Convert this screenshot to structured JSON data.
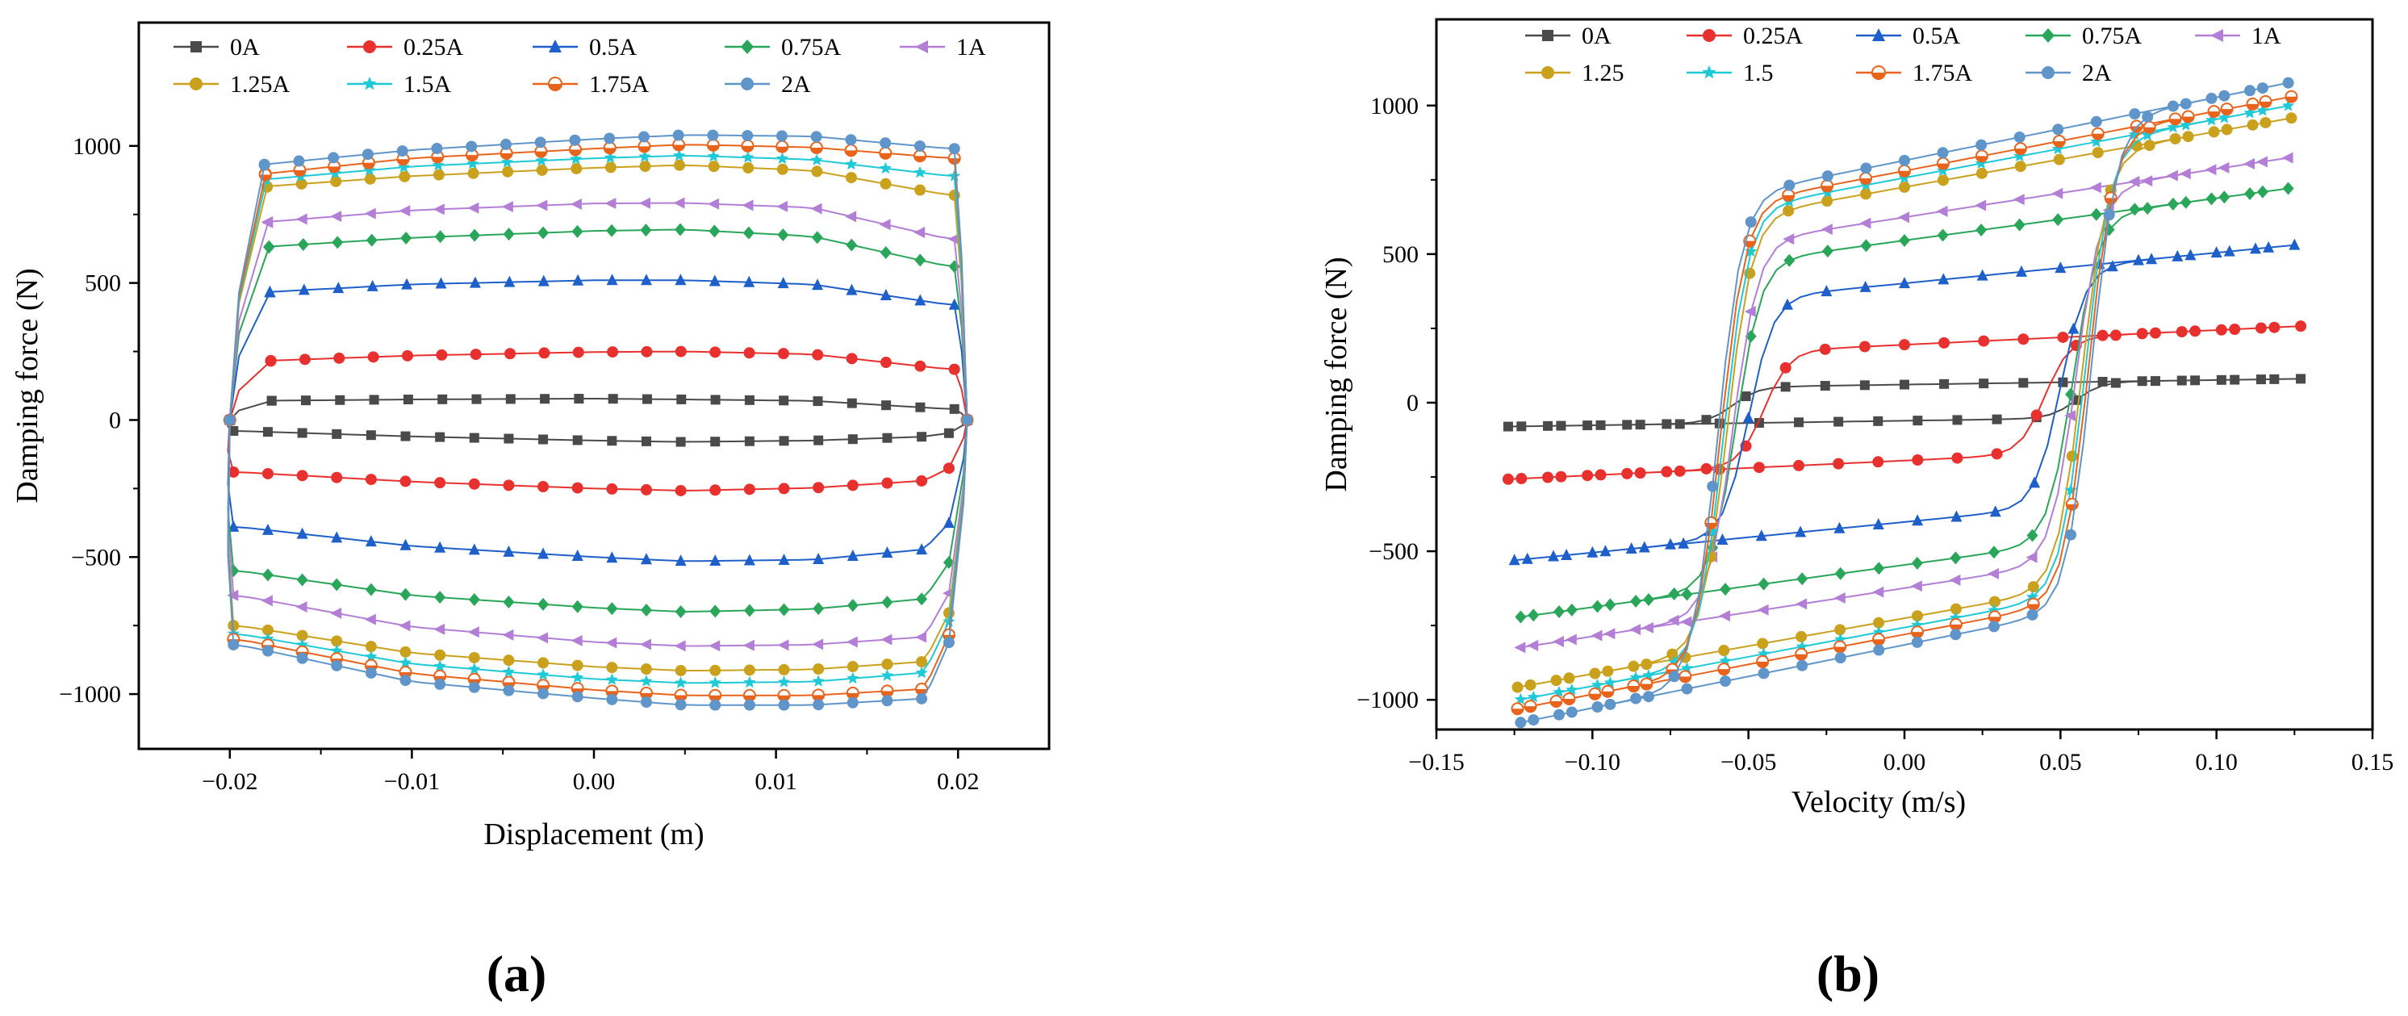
{
  "colors": {
    "0A": "#4a4a4a",
    "0.25A": "#e8312f",
    "0.5A": "#1f5fc9",
    "0.75A": "#2aa65b",
    "1A": "#b37fd6",
    "1.25A": "#c9a11c",
    "1.5A": "#1fc9d6",
    "1.75A": "#e8641c",
    "2A": "#5f95c9"
  },
  "chart_data": [
    {
      "type": "line",
      "panel_label": "(a)",
      "title": "",
      "xlabel": "Displacement (m)",
      "ylabel": "Damping force (N)",
      "xlim": [
        -0.025,
        0.025
      ],
      "ylim": [
        -1200,
        1450
      ],
      "xticks": [
        -0.02,
        -0.01,
        0.0,
        0.01,
        0.02
      ],
      "xtick_labels": [
        "−0.02",
        "−0.01",
        "0.00",
        "0.01",
        "0.02"
      ],
      "yticks": [
        -1000,
        -500,
        0,
        500,
        1000
      ],
      "ytick_labels": [
        "−1000",
        "−500",
        "0",
        "500",
        "1000"
      ],
      "legend_labels": [
        "0A",
        "0.25A",
        "0.5A",
        "0.75A",
        "1A",
        "1.25A",
        "1.5A",
        "1.75A",
        "2A"
      ],
      "legend_position": "top",
      "series": [
        {
          "name": "0A",
          "marker": "square",
          "upper": [
            70,
            75,
            78,
            75,
            70,
            40
          ],
          "lower": [
            -40,
            -60,
            -75,
            -80,
            -75,
            -60
          ]
        },
        {
          "name": "0.25A",
          "marker": "circle",
          "upper": [
            215,
            235,
            248,
            250,
            240,
            185
          ],
          "lower": [
            -190,
            -225,
            -250,
            -258,
            -248,
            -220
          ]
        },
        {
          "name": "0.5A",
          "marker": "triangle-up",
          "upper": [
            465,
            495,
            510,
            510,
            495,
            420
          ],
          "lower": [
            -390,
            -460,
            -500,
            -515,
            -510,
            -470
          ]
        },
        {
          "name": "0.75A",
          "marker": "diamond",
          "upper": [
            630,
            665,
            690,
            695,
            670,
            560
          ],
          "lower": [
            -550,
            -640,
            -685,
            -700,
            -690,
            -650
          ]
        },
        {
          "name": "1A",
          "marker": "triangle-left",
          "upper": [
            720,
            765,
            790,
            792,
            775,
            660
          ],
          "lower": [
            -640,
            -755,
            -810,
            -825,
            -820,
            -790
          ]
        },
        {
          "name": "1.25A",
          "marker": "circle",
          "upper": [
            850,
            890,
            920,
            930,
            910,
            820
          ],
          "lower": [
            -750,
            -850,
            -900,
            -915,
            -910,
            -880
          ]
        },
        {
          "name": "1.5A",
          "marker": "star",
          "upper": [
            875,
            925,
            955,
            965,
            950,
            890
          ],
          "lower": [
            -780,
            -890,
            -945,
            -960,
            -955,
            -920
          ]
        },
        {
          "name": "1.75A",
          "marker": "circle-half",
          "upper": [
            895,
            955,
            990,
            1005,
            995,
            955
          ],
          "lower": [
            -800,
            -925,
            -985,
            -1005,
            -1005,
            -980
          ]
        },
        {
          "name": "2A",
          "marker": "circle",
          "upper": [
            930,
            985,
            1025,
            1040,
            1035,
            990
          ],
          "lower": [
            -820,
            -955,
            -1015,
            -1040,
            -1040,
            -1015
          ]
        }
      ]
    },
    {
      "type": "line",
      "panel_label": "(b)",
      "title": "",
      "xlabel": "Velocity (m/s)",
      "ylabel": "Damping force (N)",
      "xlim": [
        -0.15,
        0.15
      ],
      "ylim": [
        -1100,
        1290
      ],
      "xticks": [
        -0.15,
        -0.1,
        -0.05,
        0.0,
        0.05,
        0.1,
        0.15
      ],
      "xtick_labels": [
        "−0.15",
        "−0.10",
        "−0.05",
        "0.00",
        "0.05",
        "0.10",
        "0.15"
      ],
      "yticks": [
        -1000,
        -500,
        0,
        500,
        1000
      ],
      "ytick_labels": [
        "−1000",
        "−500",
        "0",
        "500",
        "1000"
      ],
      "legend_labels": [
        "0A",
        "0.25A",
        "0.5A",
        "0.75A",
        "1A",
        "1.25",
        "1.5",
        "1.75A",
        "2A"
      ],
      "legend_position": "top",
      "series": [
        {
          "name": "0A",
          "vmax": 0.127,
          "fmax": 78,
          "shift": 0.055
        },
        {
          "name": "0.25A",
          "vmax": 0.127,
          "fmax": 250,
          "shift": 0.045
        },
        {
          "name": "0.5A",
          "vmax": 0.125,
          "fmax": 515,
          "shift": 0.05
        },
        {
          "name": "0.75A",
          "vmax": 0.123,
          "fmax": 700,
          "shift": 0.054
        },
        {
          "name": "1A",
          "vmax": 0.123,
          "fmax": 800,
          "shift": 0.055
        },
        {
          "name": "1.25",
          "vmax": 0.124,
          "fmax": 930,
          "shift": 0.057
        },
        {
          "name": "1.5",
          "vmax": 0.123,
          "fmax": 970,
          "shift": 0.058
        },
        {
          "name": "1.75A",
          "vmax": 0.124,
          "fmax": 1000,
          "shift": 0.059
        },
        {
          "name": "2A",
          "vmax": 0.123,
          "fmax": 1045,
          "shift": 0.06
        }
      ]
    }
  ]
}
